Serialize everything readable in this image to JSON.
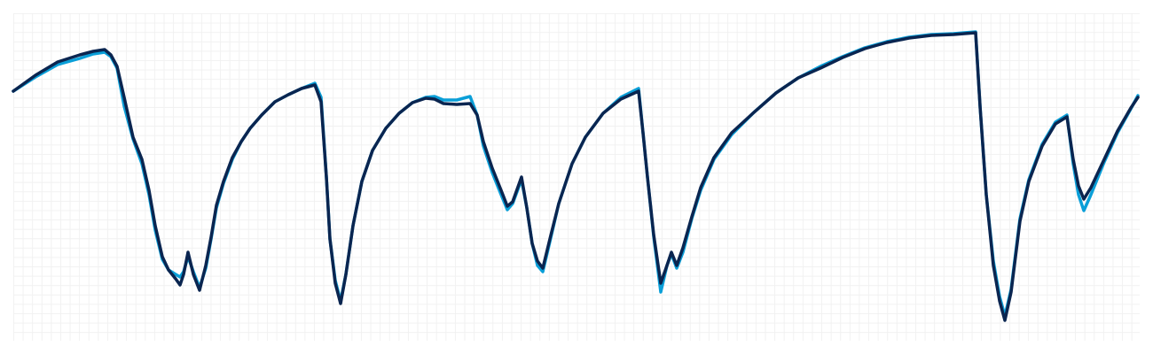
{
  "chart_data": {
    "type": "line",
    "x": [
      15,
      40,
      65,
      90,
      105,
      118,
      125,
      132,
      140,
      150,
      160,
      168,
      175,
      183,
      190,
      198,
      203,
      207,
      212,
      218,
      225,
      232,
      238,
      244,
      252,
      262,
      272,
      282,
      295,
      310,
      325,
      340,
      355,
      362,
      368,
      372,
      378,
      384,
      390,
      398,
      408,
      420,
      435,
      450,
      465,
      480,
      490,
      500,
      515,
      530,
      538,
      545,
      555,
      565,
      572,
      578,
      588,
      594,
      600,
      606,
      612,
      620,
      630,
      645,
      660,
      680,
      700,
      720,
      725,
      730,
      737,
      745,
      752,
      757,
      763,
      770,
      780,
      790,
      805,
      825,
      850,
      875,
      900,
      925,
      950,
      975,
      1000,
      1025,
      1050,
      1075,
      1100,
      1105,
      1112,
      1120,
      1127,
      1133,
      1140,
      1150,
      1160,
      1175,
      1190,
      1203,
      1210,
      1216,
      1222,
      1230,
      1245,
      1260,
      1275,
      1283
    ],
    "xlim": [
      15,
      1283
    ],
    "ylim": [
      0,
      370
    ],
    "grid": true,
    "series": [
      {
        "color": "#0a9fd8",
        "values": [
          282,
          298,
          312,
          319,
          324,
          326,
          321,
          308,
          265,
          228,
          200,
          165,
          125,
          92,
          80,
          75,
          72,
          78,
          95,
          78,
          60,
          82,
          115,
          150,
          178,
          205,
          225,
          240,
          255,
          270,
          278,
          285,
          291,
          275,
          185,
          115,
          68,
          45,
          75,
          130,
          180,
          215,
          240,
          257,
          269,
          275,
          276,
          272,
          272,
          276,
          255,
          220,
          190,
          165,
          148,
          155,
          182,
          150,
          110,
          85,
          78,
          112,
          155,
          200,
          230,
          257,
          275,
          285,
          235,
          185,
          118,
          55,
          85,
          98,
          82,
          100,
          138,
          170,
          205,
          233,
          258,
          280,
          297,
          310,
          321,
          331,
          338,
          343,
          346,
          347,
          349,
          265,
          165,
          90,
          50,
          28,
          58,
          138,
          182,
          222,
          247,
          255,
          200,
          165,
          147,
          165,
          202,
          235,
          262,
          277
        ]
      },
      {
        "color": "#0a2550",
        "values": [
          282,
          300,
          315,
          323,
          327,
          329,
          323,
          310,
          275,
          230,
          205,
          170,
          130,
          95,
          80,
          70,
          63,
          75,
          100,
          75,
          57,
          85,
          117,
          153,
          180,
          207,
          225,
          240,
          255,
          270,
          278,
          285,
          289,
          270,
          185,
          115,
          65,
          42,
          75,
          130,
          180,
          215,
          240,
          257,
          269,
          274,
          273,
          268,
          267,
          268,
          255,
          225,
          195,
          170,
          152,
          157,
          185,
          150,
          110,
          90,
          82,
          115,
          155,
          200,
          230,
          257,
          273,
          282,
          235,
          185,
          120,
          65,
          85,
          100,
          85,
          105,
          140,
          173,
          207,
          235,
          258,
          280,
          297,
          308,
          320,
          330,
          337,
          342,
          345,
          346,
          348,
          265,
          165,
          85,
          45,
          23,
          55,
          135,
          180,
          220,
          245,
          253,
          205,
          175,
          160,
          173,
          205,
          237,
          263,
          275
        ]
      }
    ]
  }
}
